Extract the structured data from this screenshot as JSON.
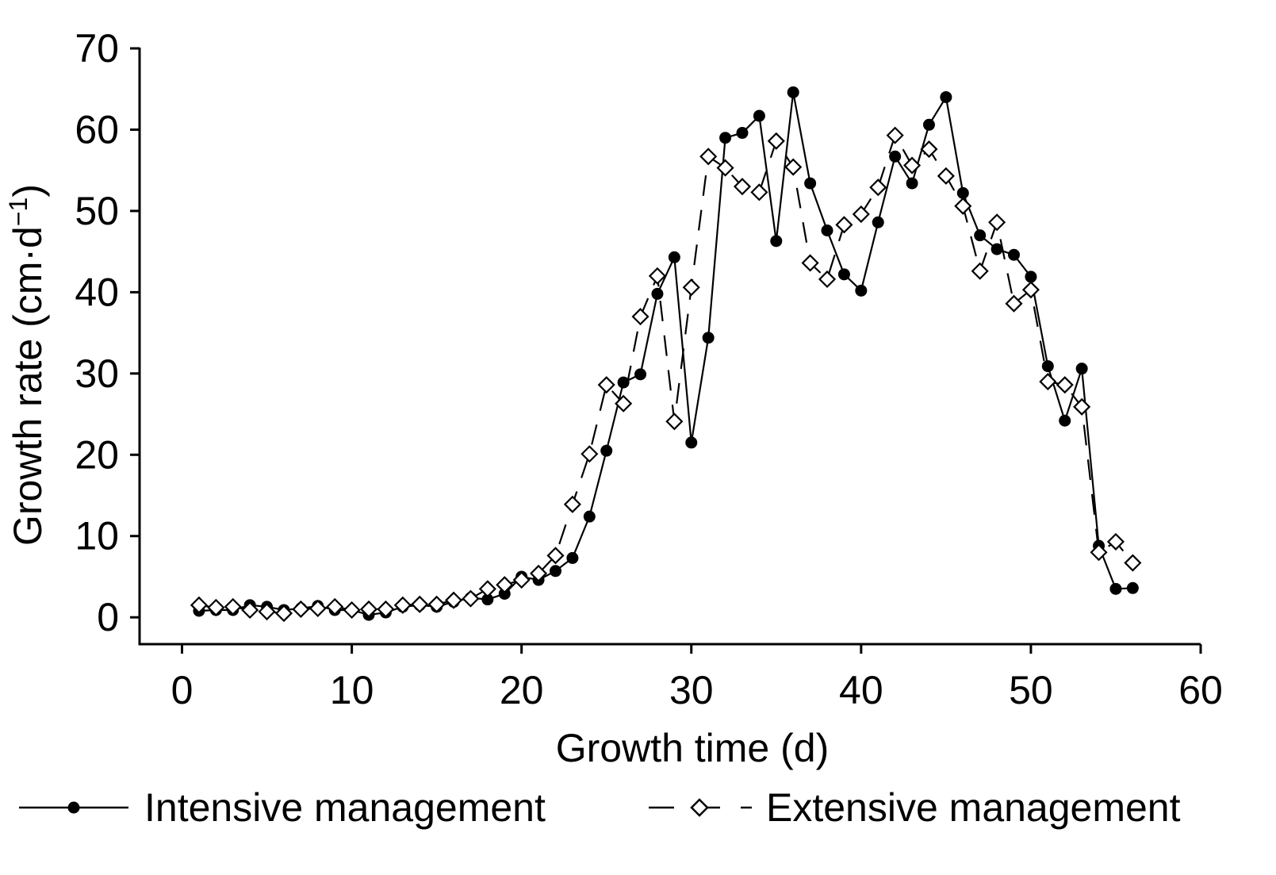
{
  "chart_data": {
    "type": "line",
    "title": "",
    "xlabel": "Growth time (d)",
    "ylabel_main": "Growth rate (cm·d",
    "ylabel_sup": "−1",
    "ylabel_close": ")",
    "xlim": [
      -2.5,
      60
    ],
    "ylim": [
      -3.3,
      70
    ],
    "xticks": [
      0,
      10,
      20,
      30,
      40,
      50,
      60
    ],
    "yticks": [
      0,
      10,
      20,
      30,
      40,
      50,
      60,
      70
    ],
    "grid": false,
    "legend_position": "bottom",
    "x": [
      1,
      2,
      3,
      4,
      5,
      6,
      7,
      8,
      9,
      10,
      11,
      12,
      13,
      14,
      15,
      16,
      17,
      18,
      19,
      20,
      21,
      22,
      23,
      24,
      25,
      26,
      27,
      28,
      29,
      30,
      31,
      32,
      33,
      34,
      35,
      36,
      37,
      38,
      39,
      40,
      41,
      42,
      43,
      44,
      45,
      46,
      47,
      48,
      49,
      50,
      51,
      52,
      53,
      54,
      55,
      56
    ],
    "series": [
      {
        "name": "Intensive management",
        "line_style": "solid",
        "marker": "filled-circle",
        "color": "#000000",
        "values": [
          0.8,
          0.9,
          0.9,
          1.5,
          1.3,
          0.9,
          1.1,
          1.4,
          0.9,
          0.9,
          0.3,
          0.6,
          1.3,
          1.5,
          1.3,
          1.9,
          2.4,
          2.2,
          2.9,
          5.0,
          4.6,
          5.7,
          7.3,
          12.4,
          20.5,
          28.9,
          29.9,
          39.8,
          44.3,
          21.5,
          34.4,
          59.0,
          59.6,
          61.7,
          46.3,
          64.6,
          53.4,
          47.6,
          42.2,
          40.2,
          48.6,
          56.7,
          53.4,
          60.6,
          64.0,
          52.2,
          47.0,
          45.3,
          44.6,
          41.9,
          30.9,
          24.2,
          30.6,
          8.8,
          3.5,
          3.6
        ]
      },
      {
        "name": "Extensive management",
        "line_style": "dashed",
        "marker": "open-diamond",
        "color": "#000000",
        "values": [
          1.5,
          1.2,
          1.3,
          0.9,
          0.7,
          0.5,
          1.0,
          1.1,
          1.3,
          0.9,
          1.0,
          1.0,
          1.5,
          1.6,
          1.6,
          2.1,
          2.3,
          3.5,
          4.0,
          4.6,
          5.4,
          7.6,
          13.9,
          20.1,
          28.6,
          26.3,
          37.0,
          42.0,
          24.1,
          40.6,
          56.7,
          55.3,
          53.0,
          52.3,
          58.6,
          55.4,
          43.6,
          41.6,
          48.3,
          49.6,
          52.9,
          59.3,
          55.6,
          57.6,
          54.3,
          50.6,
          42.6,
          48.6,
          38.6,
          40.3,
          29.0,
          28.6,
          25.9,
          8.0,
          9.3,
          6.7
        ]
      }
    ]
  }
}
